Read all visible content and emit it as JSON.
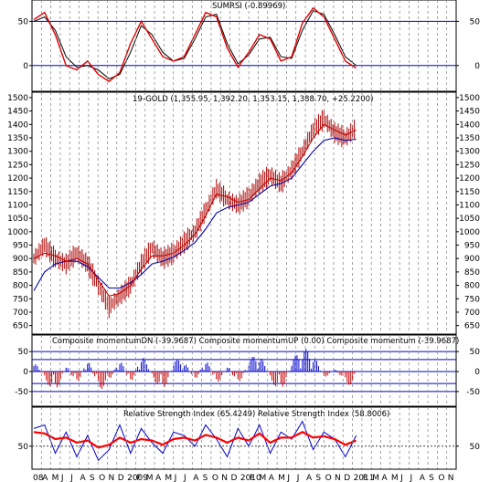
{
  "chart_data": [
    {
      "type": "line",
      "title": "SUMRSI (-0.89969)",
      "y_ticks": [
        0,
        50
      ],
      "ylim": [
        -25,
        70
      ],
      "reference_lines": [
        0,
        50
      ],
      "colors": {
        "fast": "#e00000",
        "slow": "#000000",
        "reference": "#0000cc"
      },
      "x_index": [
        0,
        6,
        12,
        18,
        24,
        30,
        36,
        42,
        48,
        54,
        60,
        66,
        72,
        78,
        84,
        90,
        96,
        102,
        108,
        114,
        120,
        126,
        132,
        138,
        144,
        150,
        156,
        162,
        168,
        174,
        180
      ],
      "series": [
        {
          "values": [
            52,
            60,
            35,
            0,
            -5,
            5,
            -10,
            -18,
            -8,
            25,
            50,
            30,
            10,
            5,
            10,
            35,
            60,
            55,
            20,
            -2,
            15,
            35,
            30,
            5,
            10,
            48,
            65,
            55,
            30,
            5,
            -3
          ]
        },
        {
          "values": [
            50,
            55,
            40,
            10,
            -2,
            0,
            -5,
            -15,
            -10,
            15,
            45,
            35,
            15,
            5,
            8,
            30,
            55,
            58,
            25,
            2,
            12,
            30,
            32,
            10,
            8,
            40,
            62,
            58,
            35,
            10,
            0
          ]
        }
      ]
    },
    {
      "type": "line",
      "title": "19-GOLD (1,355.95, 1,392.20, 1,353.15, 1,388.70, +25.2200)",
      "y_ticks": [
        650,
        700,
        750,
        800,
        850,
        900,
        950,
        1000,
        1050,
        1100,
        1150,
        1200,
        1250,
        1300,
        1350,
        1400,
        1450,
        1500
      ],
      "ylim": [
        625,
        1510
      ],
      "x_index": [
        0,
        6,
        12,
        18,
        24,
        30,
        36,
        42,
        48,
        54,
        60,
        66,
        72,
        78,
        84,
        90,
        96,
        102,
        108,
        114,
        120,
        126,
        132,
        138,
        144,
        150,
        156,
        162,
        168,
        174,
        180
      ],
      "colors": {
        "price": "#b00000",
        "ma_short": "#c00000",
        "ma_long": "#0000aa"
      },
      "series": [
        {
          "name": "price",
          "values": [
            900,
            950,
            900,
            880,
            920,
            880,
            800,
            720,
            760,
            800,
            880,
            940,
            900,
            920,
            960,
            1000,
            1080,
            1160,
            1120,
            1100,
            1130,
            1180,
            1210,
            1180,
            1230,
            1300,
            1380,
            1420,
            1370,
            1350,
            1388
          ]
        },
        {
          "name": "ma_short",
          "values": [
            900,
            920,
            910,
            890,
            900,
            880,
            820,
            760,
            770,
            800,
            860,
            910,
            910,
            920,
            950,
            990,
            1060,
            1140,
            1130,
            1110,
            1120,
            1160,
            1200,
            1190,
            1220,
            1280,
            1350,
            1400,
            1380,
            1360,
            1380
          ]
        },
        {
          "name": "ma_long",
          "values": [
            780,
            850,
            880,
            890,
            890,
            870,
            830,
            790,
            790,
            810,
            840,
            880,
            890,
            905,
            930,
            960,
            1010,
            1070,
            1090,
            1100,
            1110,
            1140,
            1170,
            1180,
            1200,
            1250,
            1300,
            1340,
            1350,
            1340,
            1345
          ]
        }
      ]
    },
    {
      "type": "bar",
      "title": "Composite momentumDN (-39.9687) Composite momentumUP (0.00) Composite momentum (-39.9687)",
      "y_ticks": [
        -50,
        0,
        50
      ],
      "ylim": [
        -80,
        80
      ],
      "reference_lines": [
        50,
        30,
        0,
        -30,
        -50
      ],
      "colors": {
        "up": "#0000cc",
        "down": "#cc0000",
        "reference": "#0000cc"
      },
      "x_index": [
        0,
        6,
        12,
        18,
        24,
        30,
        36,
        42,
        48,
        54,
        60,
        66,
        72,
        78,
        84,
        90,
        96,
        102,
        108,
        114,
        120,
        126,
        132,
        138,
        144,
        150,
        156,
        162,
        168,
        174,
        180
      ],
      "values": [
        30,
        -20,
        -60,
        20,
        -40,
        40,
        -50,
        -30,
        40,
        -40,
        50,
        -10,
        -60,
        30,
        30,
        -30,
        40,
        -40,
        20,
        -40,
        30,
        50,
        -20,
        -60,
        30,
        60,
        50,
        -20,
        10,
        -30,
        -40
      ]
    },
    {
      "type": "line",
      "title": "Relative Strength Index (65.4249) Relative Strength Index (58.8006)",
      "y_ticks": [
        50
      ],
      "ylim": [
        20,
        100
      ],
      "reference_lines": [
        50
      ],
      "colors": {
        "fast": "#0000cc",
        "slow": "#ff0000"
      },
      "x_index": [
        0,
        6,
        12,
        18,
        24,
        30,
        36,
        42,
        48,
        54,
        60,
        66,
        72,
        78,
        84,
        90,
        96,
        102,
        108,
        114,
        120,
        126,
        132,
        138,
        144,
        150,
        156,
        162,
        168,
        174,
        180
      ],
      "series": [
        {
          "values": [
            75,
            80,
            40,
            70,
            35,
            65,
            30,
            45,
            80,
            40,
            75,
            55,
            40,
            70,
            65,
            50,
            80,
            60,
            35,
            75,
            50,
            80,
            40,
            70,
            60,
            85,
            45,
            70,
            60,
            35,
            65
          ]
        },
        {
          "values": [
            70,
            68,
            60,
            62,
            55,
            58,
            48,
            52,
            62,
            55,
            60,
            58,
            52,
            60,
            62,
            58,
            66,
            62,
            55,
            62,
            58,
            68,
            55,
            62,
            62,
            70,
            62,
            64,
            60,
            52,
            58
          ]
        }
      ]
    }
  ],
  "x_axis": {
    "labels": [
      "08",
      "A",
      "M",
      "J",
      "J",
      "A",
      "S",
      "O",
      "N",
      "D",
      "2009",
      "F",
      "M",
      "A",
      "M",
      "J",
      "J",
      "A",
      "S",
      "O",
      "N",
      "D",
      "2010",
      "F",
      "M",
      "A",
      "M",
      "J",
      "J",
      "A",
      "S",
      "O",
      "N",
      "D",
      "2011",
      "F",
      "M",
      "A",
      "M",
      "J",
      "J",
      "A",
      "S",
      "O",
      "N"
    ],
    "slots": 45,
    "axis_color": "#000000",
    "grid_color": "#7f7f7f"
  }
}
